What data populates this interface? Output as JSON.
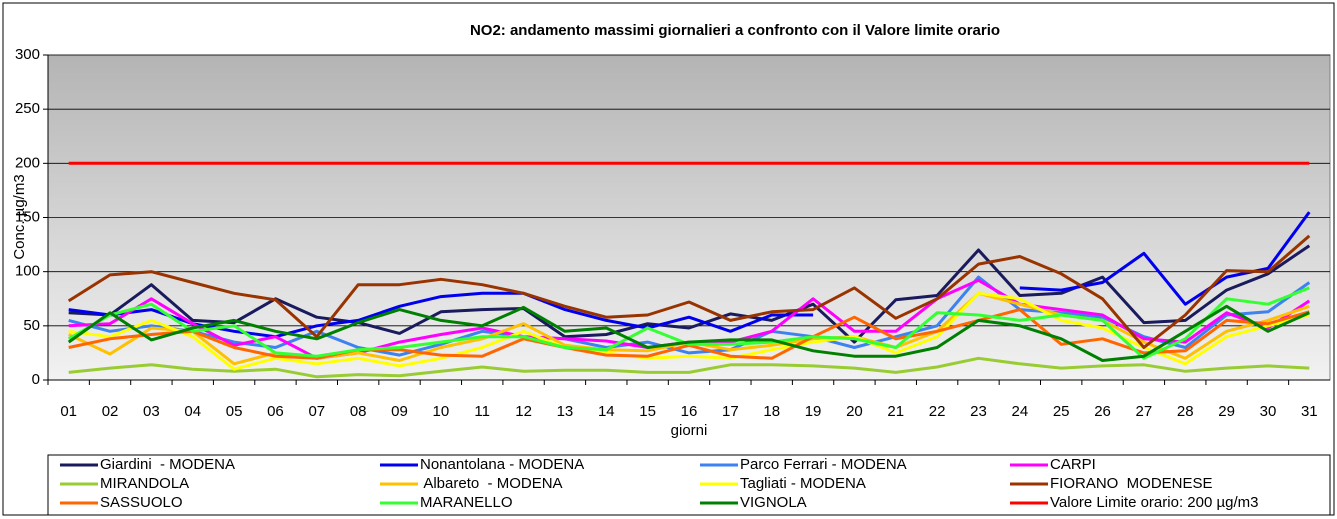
{
  "chart_data": {
    "type": "line",
    "title": "NO2: andamento massimi  giornalieri a confronto con il Valore  limite orario",
    "y_label": "Conc. µg/m3",
    "x_label": "giorni",
    "categories": [
      "01",
      "02",
      "03",
      "04",
      "05",
      "06",
      "07",
      "08",
      "09",
      "10",
      "11",
      "12",
      "13",
      "14",
      "15",
      "16",
      "17",
      "18",
      "19",
      "20",
      "21",
      "22",
      "23",
      "24",
      "25",
      "26",
      "27",
      "28",
      "29",
      "30",
      "31"
    ],
    "ylim": [
      0,
      300
    ],
    "yticks": [
      0,
      50,
      100,
      150,
      200,
      250,
      300
    ],
    "grid": true,
    "series": [
      {
        "name": "Giardini  - MODENA",
        "color": "#1a1a5e",
        "values": [
          62,
          60,
          88,
          55,
          53,
          75,
          58,
          53,
          43,
          63,
          65,
          66,
          40,
          42,
          52,
          48,
          61,
          55,
          70,
          35,
          74,
          78,
          120,
          78,
          80,
          95,
          53,
          55,
          83,
          98,
          124
        ]
      },
      {
        "name": "Nonantolana - MODENA",
        "color": "#0000ee",
        "values": [
          65,
          60,
          65,
          52,
          45,
          40,
          50,
          55,
          68,
          77,
          80,
          80,
          65,
          55,
          48,
          58,
          45,
          60,
          60,
          null,
          null,
          null,
          null,
          85,
          83,
          90,
          117,
          70,
          95,
          103,
          155
        ]
      },
      {
        "name": "Parco Ferrari - MODENA",
        "color": "#3c82f0",
        "values": [
          55,
          45,
          50,
          45,
          35,
          30,
          45,
          30,
          23,
          33,
          45,
          40,
          38,
          30,
          35,
          25,
          28,
          45,
          40,
          30,
          40,
          50,
          95,
          65,
          62,
          58,
          40,
          30,
          60,
          63,
          90
        ]
      },
      {
        "name": "CARPI",
        "color": "#ff00ff",
        "values": [
          50,
          52,
          75,
          52,
          32,
          40,
          20,
          25,
          35,
          42,
          48,
          40,
          38,
          36,
          30,
          35,
          35,
          45,
          75,
          45,
          45,
          75,
          92,
          70,
          65,
          60,
          38,
          35,
          62,
          48,
          73
        ]
      },
      {
        "name": "MIRANDOLA",
        "color": "#99cc33",
        "values": [
          7,
          11,
          14,
          10,
          8,
          10,
          3,
          5,
          4,
          8,
          12,
          8,
          9,
          9,
          7,
          7,
          14,
          14,
          13,
          11,
          7,
          12,
          20,
          15,
          11,
          13,
          14,
          8,
          11,
          13,
          11
        ]
      },
      {
        "name": " Albareto  - MODENA",
        "color": "#ffc000",
        "values": [
          42,
          24,
          48,
          45,
          15,
          25,
          20,
          25,
          18,
          30,
          38,
          52,
          32,
          28,
          27,
          35,
          28,
          32,
          38,
          40,
          30,
          45,
          80,
          70,
          60,
          55,
          35,
          20,
          45,
          55,
          68
        ]
      },
      {
        "name": "Tagliati - MODENA",
        "color": "#ffff00",
        "values": [
          45,
          40,
          55,
          40,
          10,
          20,
          15,
          20,
          13,
          20,
          30,
          45,
          30,
          25,
          20,
          22,
          20,
          28,
          35,
          40,
          25,
          40,
          80,
          75,
          55,
          48,
          30,
          15,
          40,
          50,
          60
        ]
      },
      {
        "name": "FIORANO  MODENESE",
        "color": "#993300",
        "values": [
          73,
          97,
          100,
          90,
          80,
          74,
          40,
          88,
          88,
          93,
          88,
          80,
          68,
          58,
          60,
          72,
          55,
          63,
          65,
          85,
          57,
          75,
          107,
          114,
          98,
          75,
          30,
          60,
          101,
          100,
          133
        ]
      },
      {
        "name": "SASSUOLO",
        "color": "#ff6600",
        "values": [
          30,
          38,
          42,
          45,
          30,
          22,
          20,
          28,
          28,
          23,
          22,
          38,
          30,
          23,
          22,
          32,
          22,
          20,
          40,
          58,
          38,
          45,
          55,
          65,
          33,
          38,
          25,
          27,
          55,
          52,
          63
        ]
      },
      {
        "name": "MARANELLO",
        "color": "#33ff33",
        "values": [
          38,
          60,
          70,
          45,
          50,
          25,
          22,
          28,
          30,
          35,
          40,
          40,
          30,
          28,
          48,
          33,
          33,
          35,
          40,
          38,
          30,
          62,
          60,
          55,
          60,
          55,
          20,
          38,
          75,
          70,
          85
        ]
      },
      {
        "name": "VIGNOLA",
        "color": "#008000",
        "values": [
          35,
          62,
          37,
          48,
          55,
          45,
          38,
          53,
          65,
          55,
          50,
          67,
          45,
          48,
          30,
          35,
          37,
          37,
          27,
          22,
          22,
          30,
          55,
          50,
          38,
          18,
          22,
          45,
          68,
          45,
          62
        ]
      },
      {
        "name": "Valore Limite orario: 200 µg/m3",
        "color": "#ff0000",
        "values": [
          200,
          200,
          200,
          200,
          200,
          200,
          200,
          200,
          200,
          200,
          200,
          200,
          200,
          200,
          200,
          200,
          200,
          200,
          200,
          200,
          200,
          200,
          200,
          200,
          200,
          200,
          200,
          200,
          200,
          200,
          200
        ]
      }
    ]
  }
}
